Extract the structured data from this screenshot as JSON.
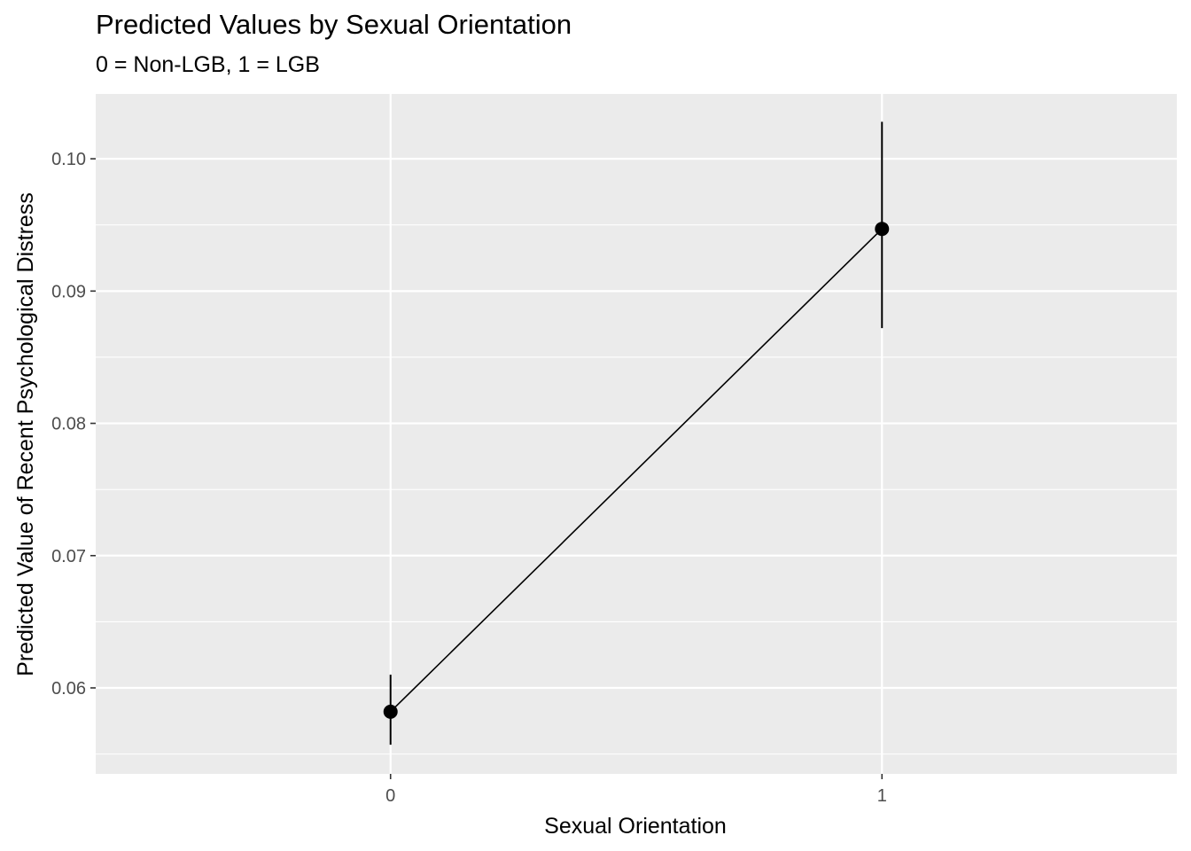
{
  "chart_data": {
    "type": "line",
    "title": "Predicted Values by Sexual Orientation",
    "subtitle": "0 = Non-LGB, 1 = LGB",
    "xlabel": "Sexual Orientation",
    "ylabel": "Predicted Value of Recent Psychological Distress",
    "x": [
      0,
      1
    ],
    "x_tick_labels": [
      "0",
      "1"
    ],
    "xlim": [
      -0.6,
      1.6
    ],
    "y_ticks": [
      0.06,
      0.07,
      0.08,
      0.09,
      0.1
    ],
    "y_tick_labels": [
      "0.06",
      "0.07",
      "0.08",
      "0.09",
      "0.10"
    ],
    "ylim": [
      0.0535,
      0.1049
    ],
    "grid": true,
    "series": [
      {
        "values": [
          0.0582,
          0.0947
        ],
        "lower": [
          0.0557,
          0.0872
        ],
        "upper": [
          0.061,
          0.1028
        ]
      }
    ],
    "colors": {
      "panel_background": "#EBEBEB",
      "grid_major": "#FFFFFF",
      "grid_minor": "#FFFFFF",
      "series": "#000000",
      "tick_label": "#4D4D4D",
      "axis_title": "#000000"
    }
  }
}
